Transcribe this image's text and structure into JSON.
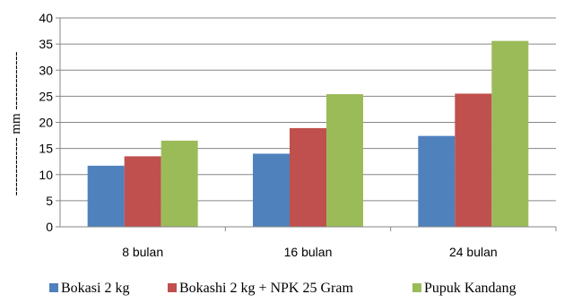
{
  "chart_data": {
    "type": "bar",
    "categories": [
      "8 bulan",
      "16 bulan",
      "24 bulan"
    ],
    "series": [
      {
        "name": "Bokasi 2 kg",
        "values": [
          11.7,
          14.0,
          17.4
        ],
        "color": "#4f81bd"
      },
      {
        "name": "Bokashi 2 kg + NPK 25 Gram",
        "values": [
          13.5,
          18.9,
          25.5
        ],
        "color": "#c0504d"
      },
      {
        "name": "Pupuk Kandang",
        "values": [
          16.5,
          25.4,
          35.6
        ],
        "color": "#9bbb59"
      }
    ],
    "ylabel": "------------- mm -------------",
    "yticks": [
      0,
      5,
      10,
      15,
      20,
      25,
      30,
      35,
      40
    ],
    "ylim": [
      0,
      40
    ],
    "grid": true,
    "legend_position": "bottom"
  }
}
